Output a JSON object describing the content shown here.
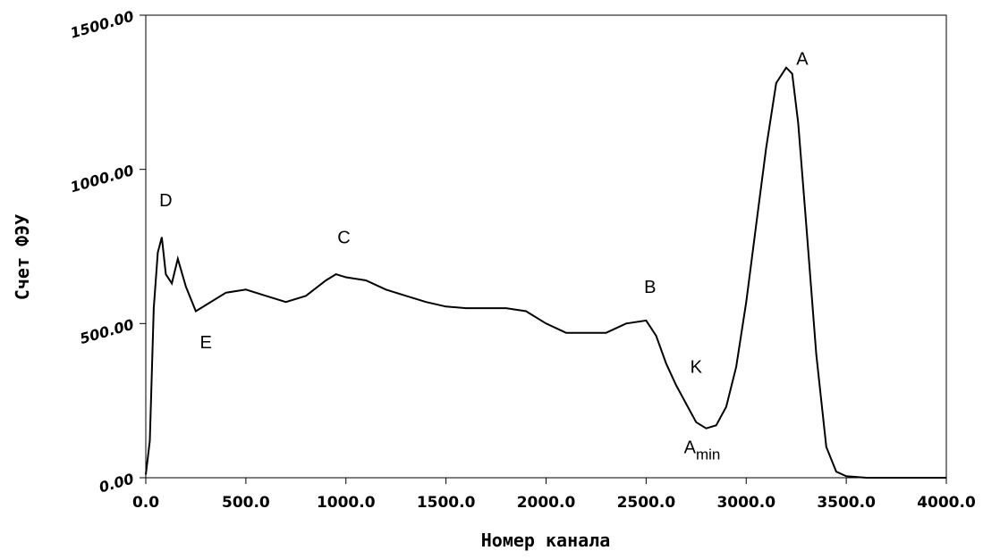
{
  "chart_data": {
    "type": "line",
    "title": "",
    "xlabel": "Номер канала",
    "ylabel": "Счет ФЭУ",
    "xlim": [
      0,
      4000
    ],
    "ylim": [
      0,
      1500
    ],
    "x_ticks": [
      "0.0",
      "500.0",
      "1000.0",
      "1500.0",
      "2000.0",
      "2500.0",
      "3000.0",
      "3500.0",
      "4000.0"
    ],
    "y_ticks": [
      "0.00",
      "500.00",
      "1000.00",
      "1500.00"
    ],
    "grid": false,
    "legend": "none",
    "color": "#000000",
    "series": [
      {
        "x": [
          0,
          20,
          40,
          60,
          80,
          100,
          130,
          160,
          200,
          250,
          300,
          400,
          500,
          600,
          700,
          800,
          900,
          950,
          1000,
          1100,
          1200,
          1300,
          1400,
          1500,
          1600,
          1700,
          1800,
          1900,
          2000,
          2100,
          2200,
          2300,
          2400,
          2500,
          2550,
          2600,
          2650,
          2700,
          2750,
          2800,
          2850,
          2900,
          2950,
          3000,
          3050,
          3100,
          3150,
          3200,
          3230,
          3260,
          3300,
          3350,
          3400,
          3450,
          3500,
          3600,
          4000
        ],
        "y": [
          10,
          120,
          550,
          730,
          780,
          660,
          630,
          710,
          620,
          540,
          560,
          600,
          610,
          590,
          570,
          590,
          640,
          660,
          650,
          640,
          610,
          590,
          570,
          555,
          550,
          550,
          550,
          540,
          500,
          470,
          470,
          470,
          500,
          510,
          460,
          370,
          300,
          240,
          180,
          160,
          170,
          230,
          360,
          570,
          820,
          1070,
          1280,
          1330,
          1310,
          1150,
          820,
          400,
          100,
          20,
          5,
          0,
          0
        ]
      }
    ],
    "annotations": [
      {
        "text": "A",
        "x": 3280,
        "y": 1340
      },
      {
        "text": "B",
        "x": 2520,
        "y": 600
      },
      {
        "text": "C",
        "x": 990,
        "y": 760
      },
      {
        "text": "D",
        "x": 100,
        "y": 880
      },
      {
        "text": "E",
        "x": 300,
        "y": 420
      },
      {
        "text": "K",
        "x": 2750,
        "y": 340
      },
      {
        "text": "A",
        "sub": "min",
        "x": 2780,
        "y": 80
      }
    ]
  }
}
